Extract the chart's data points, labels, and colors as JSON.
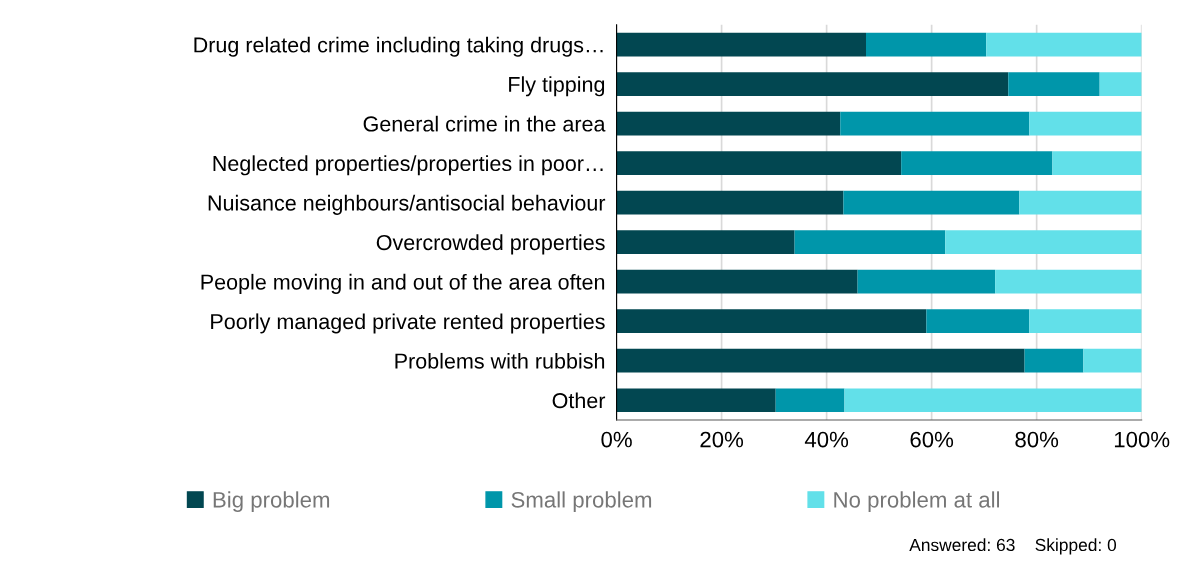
{
  "chart_data": {
    "type": "bar",
    "orientation": "horizontal",
    "stacked": true,
    "categories": [
      "Drug related crime including taking drugs…",
      "Fly tipping",
      "General crime in the area",
      "Neglected properties/properties in poor…",
      "Nuisance neighbours/antisocial behaviour",
      "Overcrowded properties",
      "People moving in and out of the area often",
      "Poorly managed private rented properties",
      "Problems with rubbish",
      "Other"
    ],
    "series": [
      {
        "name": "Big problem",
        "color": "#024751",
        "values": [
          47.5,
          74.6,
          42.6,
          54.2,
          43.2,
          33.9,
          45.9,
          59.0,
          77.7,
          30.3
        ]
      },
      {
        "name": "Small problem",
        "color": "#0096aa",
        "values": [
          22.9,
          17.4,
          36.0,
          28.8,
          33.5,
          28.7,
          26.2,
          19.6,
          11.2,
          13.1
        ]
      },
      {
        "name": "No problem at all",
        "color": "#62e0e9",
        "values": [
          29.6,
          8.0,
          21.4,
          17.0,
          23.3,
          37.4,
          27.9,
          21.4,
          11.1,
          56.6
        ]
      }
    ],
    "xlim": [
      0,
      100
    ],
    "xticks": [
      {
        "value": 0,
        "label": "0%"
      },
      {
        "value": 20,
        "label": "20%"
      },
      {
        "value": 40,
        "label": "40%"
      },
      {
        "value": 60,
        "label": "60%"
      },
      {
        "value": 80,
        "label": "80%"
      },
      {
        "value": 100,
        "label": "100%"
      }
    ],
    "grid": "x",
    "legend": "bottom",
    "annotations": [
      "Answered: 63    Skipped: 0"
    ]
  }
}
